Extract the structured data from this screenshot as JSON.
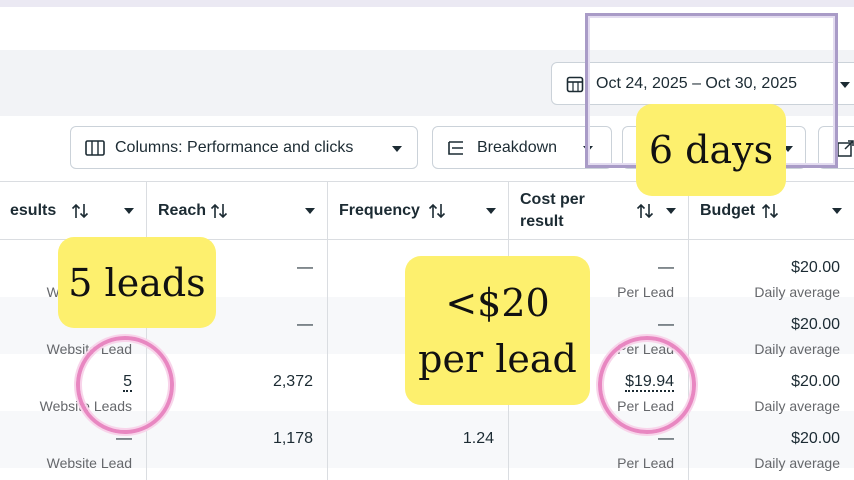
{
  "date_range": "Oct 24, 2025 – Oct 30, 2025",
  "toolbar": {
    "columns": "Columns: Performance and clicks",
    "breakdown": "Breakdown"
  },
  "table": {
    "headers": [
      "esults",
      "Reach",
      "Frequency",
      "Cost per result",
      "Budget"
    ],
    "rows": [
      [
        {
          "sub": "Website Lead"
        },
        {
          "main": "—"
        },
        null,
        {
          "main": "—",
          "sub": "Per Lead"
        },
        {
          "main": "$20.00",
          "sub": "Daily average"
        }
      ],
      [
        {
          "sub": "Website Lead"
        },
        {
          "main": "—"
        },
        null,
        {
          "main": "—",
          "sub": "Per Lead"
        },
        {
          "main": "$20.00",
          "sub": "Daily average"
        }
      ],
      [
        {
          "main": "5",
          "sub": "Website Leads"
        },
        {
          "main": "2,372"
        },
        null,
        {
          "main": "$19.94",
          "sub": "Per Lead"
        },
        {
          "main": "$20.00",
          "sub": "Daily average"
        }
      ],
      [
        {
          "main": "—",
          "sub": "Website Lead"
        },
        {
          "main": "1,178"
        },
        {
          "main": "1.24"
        },
        {
          "main": "—",
          "sub": "Per Lead"
        },
        {
          "main": "$20.00",
          "sub": "Daily average"
        }
      ]
    ]
  },
  "annotations": {
    "days": "6 days",
    "leads": "5 leads",
    "cost": [
      "<$20",
      "per lead"
    ]
  }
}
